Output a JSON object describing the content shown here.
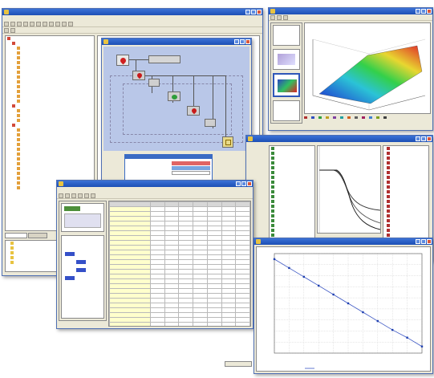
{
  "colors": {
    "titlebar": "#1d4fb5",
    "window_face": "#ece9d8",
    "canvas": "#b9c7e8",
    "cell_highlight": "#ffffcc",
    "plot_line": "#3b56c4"
  },
  "main_window": {
    "title": "",
    "menu": [
      "",
      "",
      "",
      "",
      "",
      ""
    ],
    "tree_items": [
      {
        "label": "",
        "level": 0,
        "icon": "folder"
      },
      {
        "label": "",
        "level": 1,
        "icon": "folder"
      },
      {
        "label": "",
        "level": 2,
        "icon": "item"
      },
      {
        "label": "",
        "level": 2,
        "icon": "item"
      },
      {
        "label": "",
        "level": 2,
        "icon": "item"
      },
      {
        "label": "",
        "level": 2,
        "icon": "item"
      },
      {
        "label": "",
        "level": 2,
        "icon": "item"
      },
      {
        "label": "",
        "level": 2,
        "icon": "item"
      },
      {
        "label": "",
        "level": 2,
        "icon": "item"
      },
      {
        "label": "",
        "level": 2,
        "icon": "item"
      },
      {
        "label": "",
        "level": 2,
        "icon": "item"
      },
      {
        "label": "",
        "level": 2,
        "icon": "item"
      },
      {
        "label": "",
        "level": 2,
        "icon": "item"
      },
      {
        "label": "",
        "level": 2,
        "icon": "item"
      },
      {
        "label": "",
        "level": 1,
        "icon": "folder"
      },
      {
        "label": "",
        "level": 2,
        "icon": "item"
      },
      {
        "label": "",
        "level": 2,
        "icon": "item"
      },
      {
        "label": "",
        "level": 2,
        "icon": "item"
      },
      {
        "label": "",
        "level": 1,
        "icon": "folder"
      },
      {
        "label": "",
        "level": 2,
        "icon": "item"
      },
      {
        "label": "",
        "level": 2,
        "icon": "item"
      },
      {
        "label": "",
        "level": 2,
        "icon": "item"
      },
      {
        "label": "",
        "level": 2,
        "icon": "item"
      },
      {
        "label": "",
        "level": 2,
        "icon": "item"
      },
      {
        "label": "",
        "level": 2,
        "icon": "item"
      },
      {
        "label": "",
        "level": 2,
        "icon": "item"
      },
      {
        "label": "",
        "level": 2,
        "icon": "item"
      },
      {
        "label": "",
        "level": 2,
        "icon": "item"
      },
      {
        "label": "",
        "level": 2,
        "icon": "item"
      },
      {
        "label": "",
        "level": 2,
        "icon": "item"
      },
      {
        "label": "",
        "level": 2,
        "icon": "item"
      },
      {
        "label": "",
        "level": 2,
        "icon": "item"
      }
    ],
    "bottom_tree": [
      "",
      "",
      "",
      "",
      ""
    ]
  },
  "diagram_window": {
    "title": "",
    "block_label": "",
    "legend_rows": [
      {
        "name": "",
        "value": ""
      },
      {
        "name": "",
        "value": ""
      },
      {
        "name": "",
        "value": ""
      }
    ]
  },
  "plot3d_window": {
    "title": "",
    "axis_label": "",
    "legend": [
      "",
      "",
      "",
      "",
      "",
      "",
      "",
      "",
      "",
      "",
      "",
      ""
    ]
  },
  "graph_window": {
    "title": "",
    "left_items": [
      "",
      "",
      "",
      "",
      "",
      "",
      "",
      "",
      "",
      "",
      "",
      "",
      "",
      "",
      "",
      "",
      "",
      "",
      "",
      "",
      "",
      ""
    ],
    "right_items": [
      "",
      "",
      "",
      "",
      "",
      "",
      "",
      "",
      "",
      "",
      "",
      "",
      "",
      "",
      "",
      "",
      "",
      "",
      "",
      ""
    ],
    "ok_label": ""
  },
  "data_window": {
    "title": "",
    "menu": [
      "",
      "",
      ""
    ],
    "column_headers": [
      "",
      "",
      "",
      "",
      "",
      "",
      "",
      ""
    ],
    "rows": [
      {
        "label": "",
        "cells": [
          "",
          "",
          "",
          "",
          "",
          "",
          ""
        ]
      },
      {
        "label": "",
        "cells": [
          "",
          "",
          "",
          "",
          "",
          "",
          ""
        ]
      },
      {
        "label": "",
        "cells": [
          "",
          "",
          "",
          "",
          "",
          "",
          ""
        ]
      },
      {
        "label": "",
        "cells": [
          "",
          "",
          "",
          "",
          "",
          "",
          ""
        ]
      },
      {
        "label": "",
        "cells": [
          "",
          "",
          "",
          "",
          "",
          "",
          ""
        ]
      },
      {
        "label": "",
        "cells": [
          "",
          "",
          "",
          "",
          "",
          "",
          ""
        ]
      },
      {
        "label": "",
        "cells": [
          "",
          "",
          "",
          "",
          "",
          "",
          ""
        ]
      },
      {
        "label": "",
        "cells": [
          "",
          "",
          "",
          "",
          "",
          "",
          ""
        ]
      },
      {
        "label": "",
        "cells": [
          "",
          "",
          "",
          "",
          "",
          "",
          ""
        ]
      },
      {
        "label": "",
        "cells": [
          "",
          "",
          "",
          "",
          "",
          "",
          ""
        ]
      },
      {
        "label": "",
        "cells": [
          "",
          "",
          "",
          "",
          "",
          "",
          ""
        ]
      },
      {
        "label": "",
        "cells": [
          "",
          "",
          "",
          "",
          "",
          "",
          ""
        ]
      },
      {
        "label": "",
        "cells": [
          "",
          "",
          "",
          "",
          "",
          "",
          ""
        ]
      },
      {
        "label": "",
        "cells": [
          "",
          "",
          "",
          "",
          "",
          "",
          ""
        ]
      },
      {
        "label": "",
        "cells": [
          "",
          "",
          "",
          "",
          "",
          "",
          ""
        ]
      },
      {
        "label": "",
        "cells": [
          "",
          "",
          "",
          "",
          "",
          "",
          ""
        ]
      },
      {
        "label": "",
        "cells": [
          "",
          "",
          "",
          "",
          "",
          "",
          ""
        ]
      },
      {
        "label": "",
        "cells": [
          "",
          "",
          "",
          "",
          "",
          "",
          ""
        ]
      },
      {
        "label": "",
        "cells": [
          "",
          "",
          "",
          "",
          "",
          "",
          ""
        ]
      },
      {
        "label": "",
        "cells": [
          "",
          "",
          "",
          "",
          "",
          "",
          ""
        ]
      },
      {
        "label": "",
        "cells": [
          "",
          "",
          "",
          "",
          "",
          "",
          ""
        ]
      },
      {
        "label": "",
        "cells": [
          "",
          "",
          "",
          "",
          "",
          "",
          ""
        ]
      },
      {
        "label": "",
        "cells": [
          "",
          "",
          "",
          "",
          "",
          "",
          ""
        ]
      },
      {
        "label": "",
        "cells": [
          "",
          "",
          "",
          "",
          "",
          "",
          ""
        ]
      },
      {
        "label": "",
        "cells": [
          "",
          "",
          "",
          "",
          "",
          "",
          ""
        ]
      },
      {
        "label": "",
        "cells": [
          "",
          "",
          "",
          "",
          "",
          "",
          ""
        ]
      },
      {
        "label": "",
        "cells": [
          "",
          "",
          "",
          "",
          "",
          "",
          ""
        ]
      },
      {
        "label": "",
        "cells": [
          "",
          "",
          "",
          "",
          "",
          "",
          ""
        ]
      },
      {
        "label": "",
        "cells": [
          "",
          "",
          "",
          "",
          "",
          "",
          ""
        ]
      }
    ],
    "bottom_button": ""
  },
  "line_plot_window": {
    "title": "",
    "xlabel": "",
    "legend": "",
    "bottom_button": "",
    "chart_data": {
      "type": "line",
      "x": [
        0.0,
        0.1,
        0.2,
        0.3,
        0.4,
        0.5,
        0.6,
        0.7,
        0.8,
        0.9,
        1.0
      ],
      "series": [
        {
          "name": "",
          "values": [
            0.95,
            0.87,
            0.79,
            0.71,
            0.63,
            0.55,
            0.47,
            0.39,
            0.31,
            0.24,
            0.16
          ]
        }
      ],
      "xlim": [
        0.0,
        1.0
      ],
      "ylim": [
        0.1,
        1.0
      ],
      "xticks": [
        "",
        "",
        "",
        "",
        "",
        "",
        "",
        "",
        "",
        "",
        ""
      ],
      "yticks": [
        "",
        "",
        "",
        "",
        "",
        "",
        "",
        "",
        "",
        ""
      ],
      "grid": true,
      "legend_position": "bottom"
    }
  }
}
